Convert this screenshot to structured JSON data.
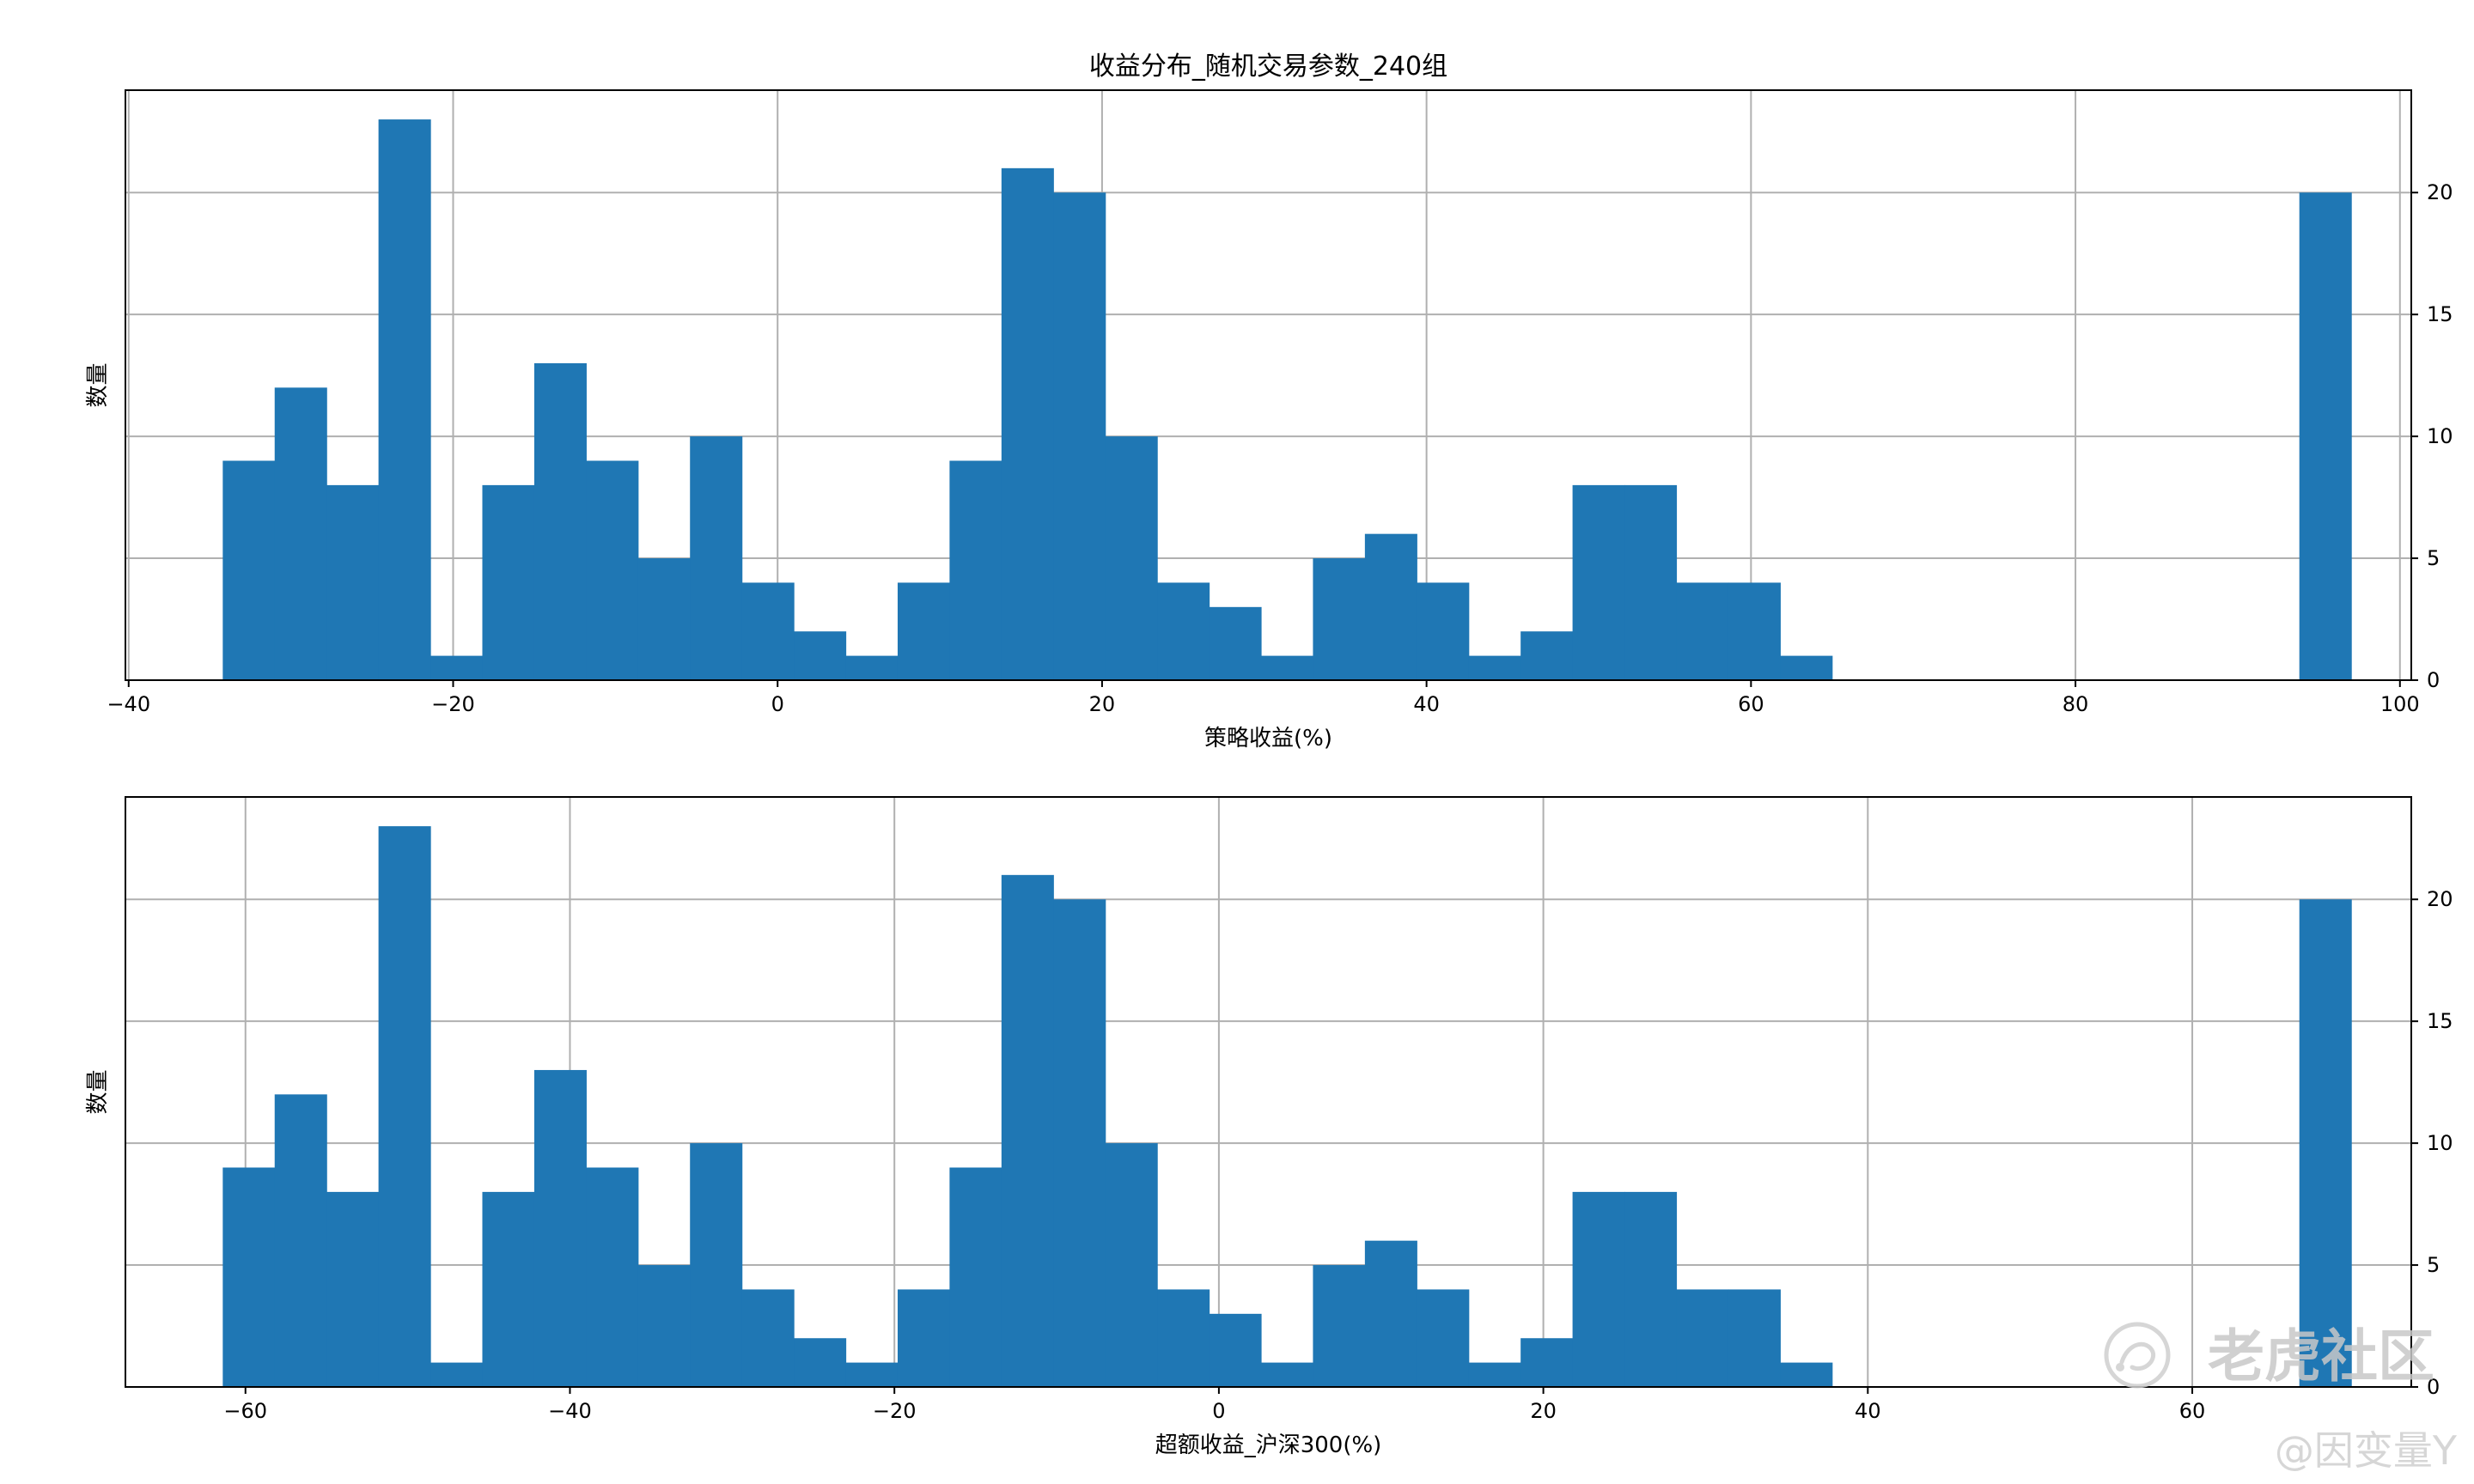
{
  "colors": {
    "bar": "#1f77b4",
    "grid": "#b0b0b0",
    "axis": "#000000",
    "watermark": "#c8c8c8"
  },
  "chart_data": [
    {
      "type": "bar",
      "title": "收益分布_随机交易参数_240组",
      "xlabel": "策略收益(%)",
      "ylabel": "数量",
      "y_axis_side": "right",
      "grid": true,
      "xlim": [
        -40.2,
        100.7
      ],
      "ylim": [
        0,
        24.2
      ],
      "xticks": [
        -40,
        -20,
        0,
        20,
        40,
        60,
        80,
        100
      ],
      "xtick_labels": [
        "−40",
        "−20",
        "0",
        "20",
        "40",
        "60",
        "80",
        "100"
      ],
      "yticks": [
        0,
        5,
        10,
        15,
        20
      ],
      "ytick_labels": [
        "0",
        "5",
        "10",
        "15",
        "20"
      ],
      "bin_start": -34.2,
      "bin_width": 3.2,
      "values": [
        9,
        12,
        8,
        23,
        1,
        8,
        13,
        9,
        5,
        10,
        4,
        2,
        1,
        4,
        9,
        21,
        20,
        10,
        4,
        3,
        1,
        5,
        6,
        4,
        1,
        2,
        8,
        8,
        4,
        4,
        1,
        0,
        0,
        0,
        0,
        0,
        0,
        0,
        0,
        0,
        20
      ]
    },
    {
      "type": "bar",
      "xlabel": "超额收益_沪深300(%)",
      "ylabel": "数量",
      "y_axis_side": "right",
      "grid": true,
      "xlim": [
        -67.4,
        73.5
      ],
      "ylim": [
        0,
        24.2
      ],
      "xticks": [
        -60,
        -40,
        -20,
        0,
        20,
        40,
        60
      ],
      "xtick_labels": [
        "−60",
        "−40",
        "−20",
        "0",
        "20",
        "40",
        "60"
      ],
      "yticks": [
        0,
        5,
        10,
        15,
        20
      ],
      "ytick_labels": [
        "0",
        "5",
        "10",
        "15",
        "20"
      ],
      "bin_start": -61.4,
      "bin_width": 3.2,
      "values": [
        9,
        12,
        8,
        23,
        1,
        8,
        13,
        9,
        5,
        10,
        4,
        2,
        1,
        4,
        9,
        21,
        20,
        10,
        4,
        3,
        1,
        5,
        6,
        4,
        1,
        2,
        8,
        8,
        4,
        4,
        1,
        0,
        0,
        0,
        0,
        0,
        0,
        0,
        0,
        0,
        20
      ]
    }
  ],
  "watermark": {
    "brand": "老虎社区",
    "author": "@因变量Y"
  }
}
